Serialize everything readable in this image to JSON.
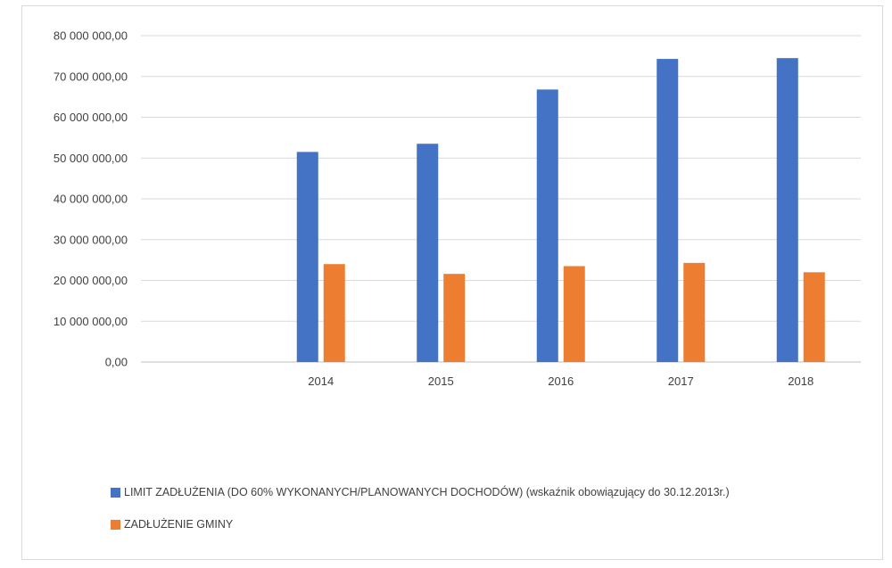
{
  "chart_data": {
    "type": "bar",
    "categories": [
      "",
      "2014",
      "2015",
      "2016",
      "2017",
      "2018"
    ],
    "series": [
      {
        "name": "LIMIT ZADŁUŻENIA (DO 60% WYKONANYCH/PLANOWANYCH DOCHODÓW) (wskaźnik obowiązujący do 30.12.2013r.)",
        "color": "#4472C4",
        "values": [
          null,
          51500000,
          53500000,
          66800000,
          74300000,
          74500000
        ]
      },
      {
        "name": "ZADŁUŻENIE GMINY",
        "color": "#ED7D31",
        "values": [
          null,
          24000000,
          21600000,
          23500000,
          24300000,
          22000000
        ]
      }
    ],
    "ylim": [
      0,
      80000000
    ],
    "yticks": [
      {
        "value": 0,
        "label": "0,00"
      },
      {
        "value": 10000000,
        "label": "10 000 000,00"
      },
      {
        "value": 20000000,
        "label": "20 000 000,00"
      },
      {
        "value": 30000000,
        "label": "30 000 000,00"
      },
      {
        "value": 40000000,
        "label": "40 000 000,00"
      },
      {
        "value": 50000000,
        "label": "50 000 000,00"
      },
      {
        "value": 60000000,
        "label": "60 000 000,00"
      },
      {
        "value": 70000000,
        "label": "70 000 000,00"
      },
      {
        "value": 80000000,
        "label": "80 000 000,00"
      }
    ],
    "title": "",
    "xlabel": "",
    "ylabel": "",
    "grid": true,
    "legend_position": "bottom-left",
    "gridline_color": "#d9d9d9",
    "axis_color": "#bfbfbf",
    "text_color": "#404040"
  }
}
